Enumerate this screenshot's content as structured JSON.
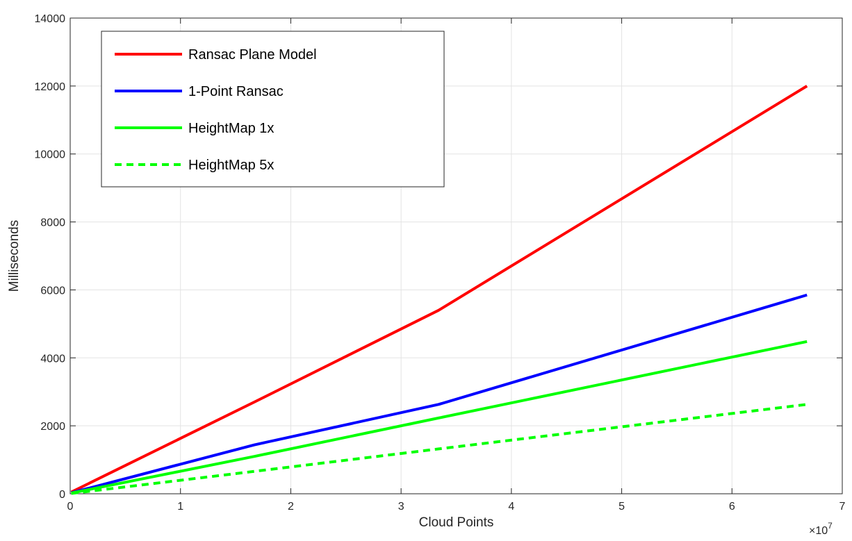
{
  "chart_data": {
    "type": "line",
    "xlabel": "Cloud Points",
    "ylabel": "Milliseconds",
    "x_exponent_label": "×10",
    "x_exponent_power": "7",
    "xlim": [
      0,
      7
    ],
    "ylim": [
      0,
      14000
    ],
    "x_scale_note": "x values in units of 10^7",
    "xticks": [
      0,
      1,
      2,
      3,
      4,
      5,
      6,
      7
    ],
    "xtick_labels": [
      "0",
      "1",
      "2",
      "3",
      "4",
      "5",
      "6",
      "7"
    ],
    "yticks": [
      0,
      2000,
      4000,
      6000,
      8000,
      10000,
      12000,
      14000
    ],
    "ytick_labels": [
      "0",
      "2000",
      "4000",
      "6000",
      "8000",
      "10000",
      "12000",
      "14000"
    ],
    "grid": true,
    "legend_position": "top-left",
    "series": [
      {
        "name": "Ransac Plane Model",
        "color": "#ff0000",
        "dash": "solid",
        "x": [
          0.01,
          1.67,
          3.34,
          6.68
        ],
        "y": [
          50,
          2700,
          5400,
          12000
        ]
      },
      {
        "name": "1-Point Ransac",
        "color": "#0000ff",
        "dash": "solid",
        "x": [
          0.01,
          1.67,
          3.34,
          6.68
        ],
        "y": [
          30,
          1440,
          2630,
          5850
        ]
      },
      {
        "name": "HeightMap 1x",
        "color": "#00ff00",
        "dash": "solid",
        "x": [
          0.01,
          1.67,
          3.34,
          6.68
        ],
        "y": [
          20,
          1100,
          2230,
          4480
        ]
      },
      {
        "name": "HeightMap 5x",
        "color": "#00ff00",
        "dash": "dashed",
        "x": [
          0.01,
          1.67,
          3.34,
          6.68
        ],
        "y": [
          10,
          660,
          1320,
          2630
        ]
      }
    ]
  }
}
